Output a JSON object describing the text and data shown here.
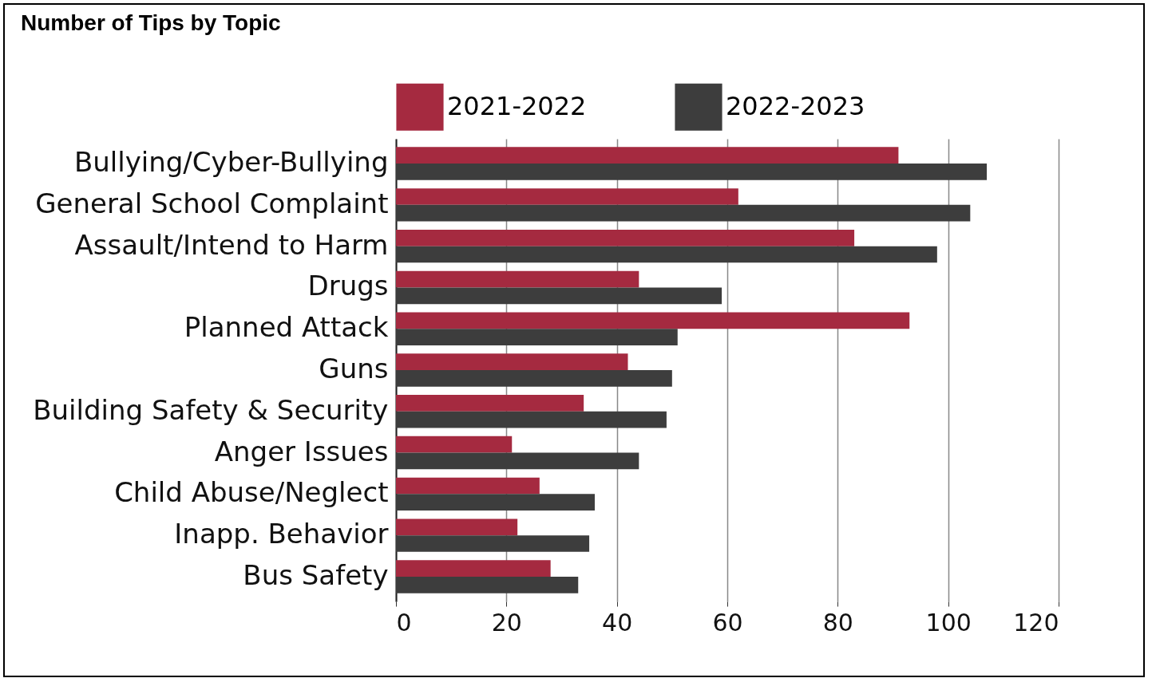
{
  "chart_data": {
    "type": "bar",
    "orientation": "horizontal",
    "title": "Number of Tips by Topic",
    "categories": [
      "Bullying/Cyber-Bullying",
      "General School Complaint",
      "Assault/Intend to Harm",
      "Drugs",
      "Planned Attack",
      "Guns",
      "Building Safety & Security",
      "Anger Issues",
      "Child Abuse/Neglect",
      "Inapp. Behavior",
      "Bus Safety"
    ],
    "series": [
      {
        "name": "2021-2022",
        "color": "#a52a40",
        "values": [
          91,
          62,
          83,
          44,
          93,
          42,
          34,
          21,
          26,
          22,
          28
        ]
      },
      {
        "name": "2022-2023",
        "color": "#3d3d3d",
        "values": [
          107,
          104,
          98,
          59,
          51,
          50,
          49,
          44,
          36,
          35,
          33
        ]
      }
    ],
    "xlim": [
      0,
      120
    ],
    "xticks": [
      0,
      20,
      40,
      60,
      80,
      100,
      120
    ],
    "grid": "x",
    "legend": "top"
  }
}
